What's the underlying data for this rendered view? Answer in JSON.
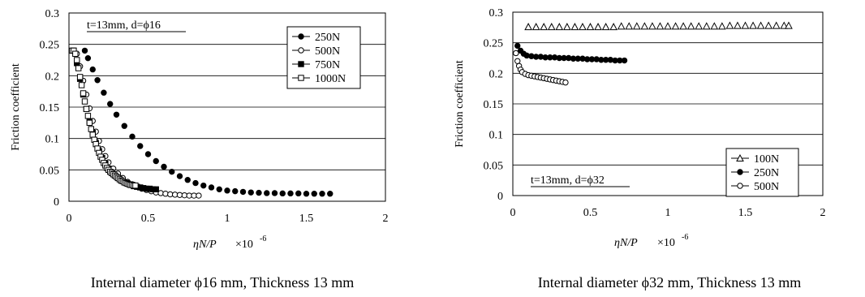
{
  "chart_data": [
    {
      "type": "scatter",
      "annotation": "t=13mm, d=ϕ16",
      "ylabel": "Friction coefficient",
      "xlabel": "ηN/P",
      "xlabel_multiplier": "×10",
      "xlabel_exponent": "-6",
      "caption": "Internal diameter ϕ16  mm, Thickness 13  mm",
      "xlim": [
        0,
        2
      ],
      "ylim": [
        0,
        0.3
      ],
      "xticks": [
        "0",
        "0.5",
        "1",
        "1.5",
        "2"
      ],
      "yticks": [
        "0",
        "0.05",
        "0.1",
        "0.15",
        "0.2",
        "0.25",
        "0.3"
      ],
      "grid": "horizontal",
      "legend_position": "top-right",
      "series": [
        {
          "name": "250N",
          "marker": "filled-circle",
          "x": [
            0.1,
            0.12,
            0.15,
            0.18,
            0.22,
            0.26,
            0.3,
            0.35,
            0.4,
            0.45,
            0.5,
            0.55,
            0.6,
            0.65,
            0.7,
            0.75,
            0.8,
            0.85,
            0.9,
            0.95,
            1.0,
            1.05,
            1.1,
            1.15,
            1.2,
            1.25,
            1.3,
            1.35,
            1.4,
            1.45,
            1.5,
            1.55,
            1.6,
            1.65
          ],
          "y": [
            0.24,
            0.228,
            0.21,
            0.193,
            0.173,
            0.155,
            0.138,
            0.12,
            0.103,
            0.088,
            0.075,
            0.064,
            0.055,
            0.047,
            0.04,
            0.034,
            0.029,
            0.025,
            0.022,
            0.019,
            0.017,
            0.016,
            0.015,
            0.014,
            0.0135,
            0.013,
            0.013,
            0.0125,
            0.0125,
            0.0125,
            0.012,
            0.012,
            0.012,
            0.012
          ]
        },
        {
          "name": "500N",
          "marker": "open-circle",
          "x": [
            0.05,
            0.07,
            0.09,
            0.11,
            0.13,
            0.15,
            0.17,
            0.19,
            0.21,
            0.23,
            0.25,
            0.28,
            0.31,
            0.34,
            0.37,
            0.4,
            0.43,
            0.46,
            0.49,
            0.52,
            0.55,
            0.58,
            0.61,
            0.64,
            0.67,
            0.7,
            0.73,
            0.76,
            0.79,
            0.82
          ],
          "y": [
            0.235,
            0.215,
            0.192,
            0.17,
            0.148,
            0.128,
            0.111,
            0.096,
            0.083,
            0.072,
            0.062,
            0.052,
            0.044,
            0.037,
            0.031,
            0.027,
            0.023,
            0.02,
            0.018,
            0.016,
            0.014,
            0.013,
            0.012,
            0.011,
            0.0105,
            0.01,
            0.0095,
            0.009,
            0.009,
            0.009
          ]
        },
        {
          "name": "750N",
          "marker": "filled-square",
          "x": [
            0.03,
            0.05,
            0.07,
            0.09,
            0.11,
            0.13,
            0.15,
            0.17,
            0.19,
            0.21,
            0.23,
            0.25,
            0.27,
            0.29,
            0.31,
            0.33,
            0.35,
            0.37,
            0.39,
            0.41,
            0.43,
            0.45,
            0.47,
            0.49,
            0.51,
            0.53,
            0.55
          ],
          "y": [
            0.24,
            0.22,
            0.195,
            0.17,
            0.147,
            0.127,
            0.109,
            0.093,
            0.08,
            0.069,
            0.06,
            0.052,
            0.046,
            0.041,
            0.037,
            0.033,
            0.03,
            0.028,
            0.026,
            0.024,
            0.023,
            0.022,
            0.021,
            0.02,
            0.02,
            0.019,
            0.019
          ]
        },
        {
          "name": "1000N",
          "marker": "open-square",
          "x": [
            0.02,
            0.03,
            0.04,
            0.05,
            0.06,
            0.07,
            0.08,
            0.09,
            0.1,
            0.11,
            0.12,
            0.13,
            0.14,
            0.15,
            0.16,
            0.17,
            0.18,
            0.19,
            0.2,
            0.21,
            0.22,
            0.23,
            0.24,
            0.25,
            0.26,
            0.27,
            0.28,
            0.29,
            0.3,
            0.31,
            0.32,
            0.33,
            0.34,
            0.35,
            0.36,
            0.37,
            0.38,
            0.39,
            0.4,
            0.41,
            0.42
          ],
          "y": [
            0.24,
            0.24,
            0.235,
            0.225,
            0.212,
            0.198,
            0.185,
            0.172,
            0.159,
            0.147,
            0.136,
            0.125,
            0.115,
            0.106,
            0.098,
            0.091,
            0.084,
            0.077,
            0.071,
            0.066,
            0.061,
            0.057,
            0.053,
            0.05,
            0.047,
            0.045,
            0.043,
            0.041,
            0.039,
            0.037,
            0.035,
            0.033,
            0.032,
            0.03,
            0.029,
            0.028,
            0.027,
            0.026,
            0.026,
            0.025,
            0.025
          ]
        }
      ]
    },
    {
      "type": "scatter",
      "annotation": "t=13mm, d=ϕ32",
      "ylabel": "Friction coefficient",
      "xlabel": "ηN/P",
      "xlabel_multiplier": "×10",
      "xlabel_exponent": "-6",
      "caption": "Internal diameter ϕ32 mm, Thickness 13  mm",
      "xlim": [
        0,
        2
      ],
      "ylim": [
        0,
        0.3
      ],
      "xticks": [
        "0",
        "0.5",
        "1",
        "1.5",
        "2"
      ],
      "yticks": [
        "0",
        "0.05",
        "0.1",
        "0.15",
        "0.2",
        "0.25",
        "0.3"
      ],
      "grid": "horizontal",
      "legend_position": "bottom-right",
      "series": [
        {
          "name": "100N",
          "marker": "open-triangle",
          "x": [
            0.1,
            0.15,
            0.2,
            0.25,
            0.3,
            0.35,
            0.4,
            0.45,
            0.5,
            0.55,
            0.6,
            0.65,
            0.7,
            0.75,
            0.8,
            0.85,
            0.9,
            0.95,
            1.0,
            1.05,
            1.1,
            1.15,
            1.2,
            1.25,
            1.3,
            1.35,
            1.4,
            1.45,
            1.5,
            1.55,
            1.6,
            1.65,
            1.7,
            1.75,
            1.78
          ],
          "y": [
            0.276,
            0.276,
            0.276,
            0.276,
            0.276,
            0.276,
            0.276,
            0.276,
            0.276,
            0.276,
            0.276,
            0.276,
            0.277,
            0.277,
            0.277,
            0.277,
            0.277,
            0.277,
            0.277,
            0.277,
            0.277,
            0.277,
            0.277,
            0.277,
            0.277,
            0.277,
            0.278,
            0.278,
            0.278,
            0.278,
            0.278,
            0.278,
            0.278,
            0.278,
            0.278
          ]
        },
        {
          "name": "250N",
          "marker": "filled-circle",
          "x": [
            0.03,
            0.05,
            0.07,
            0.09,
            0.12,
            0.15,
            0.18,
            0.21,
            0.24,
            0.27,
            0.3,
            0.33,
            0.36,
            0.39,
            0.42,
            0.45,
            0.48,
            0.51,
            0.54,
            0.57,
            0.6,
            0.63,
            0.66,
            0.69,
            0.72
          ],
          "y": [
            0.245,
            0.237,
            0.232,
            0.229,
            0.228,
            0.227,
            0.227,
            0.226,
            0.226,
            0.226,
            0.225,
            0.225,
            0.225,
            0.224,
            0.224,
            0.224,
            0.223,
            0.223,
            0.223,
            0.222,
            0.222,
            0.222,
            0.221,
            0.221,
            0.221
          ]
        },
        {
          "name": "500N",
          "marker": "open-circle",
          "x": [
            0.02,
            0.03,
            0.04,
            0.05,
            0.06,
            0.08,
            0.1,
            0.12,
            0.14,
            0.16,
            0.18,
            0.2,
            0.22,
            0.24,
            0.26,
            0.28,
            0.3,
            0.32,
            0.34
          ],
          "y": [
            0.233,
            0.22,
            0.212,
            0.206,
            0.202,
            0.199,
            0.197,
            0.196,
            0.195,
            0.194,
            0.193,
            0.192,
            0.191,
            0.19,
            0.189,
            0.188,
            0.187,
            0.186,
            0.185
          ]
        }
      ]
    }
  ]
}
